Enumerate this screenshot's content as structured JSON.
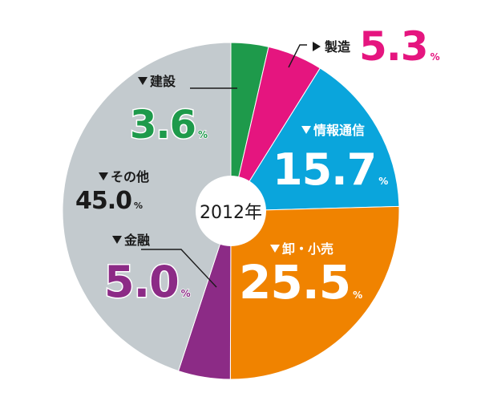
{
  "chart_data": {
    "type": "pie",
    "title": "2012年",
    "unit": "%",
    "start_angle_deg": 0,
    "direction": "clockwise",
    "slices": [
      {
        "label": "建設",
        "value": 3.6,
        "display": "3.6",
        "color": "#1e9a4b"
      },
      {
        "label": "製造",
        "value": 5.3,
        "display": "5.3",
        "color": "#e5157f"
      },
      {
        "label": "情報通信",
        "value": 15.7,
        "display": "15.7",
        "color": "#0aa5dc"
      },
      {
        "label": "卸・小売",
        "value": 25.5,
        "display": "25.5",
        "color": "#f08300"
      },
      {
        "label": "金融",
        "value": 5.0,
        "display": "5.0",
        "color": "#8c2b86"
      },
      {
        "label": "その他",
        "value": 45.0,
        "display": "45.0",
        "color": "#c3cace"
      }
    ]
  }
}
